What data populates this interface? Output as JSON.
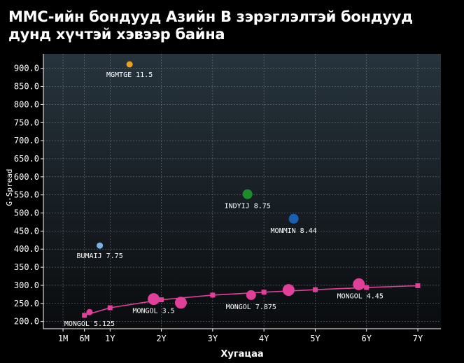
{
  "chart_data": {
    "type": "scatter",
    "title": "MMC-ийн бондууд Азийн B зэрэглэлтэй бондууд дунд хүчтэй хэвээр байна",
    "xlabel": "Хугацаа",
    "ylabel": "G-Spread",
    "ylim": [
      180,
      940
    ],
    "xlim": [
      -0.3,
      7.45
    ],
    "grid": true,
    "x_ticks": [
      {
        "value": 0.083,
        "label": "1M"
      },
      {
        "value": 0.5,
        "label": "6M"
      },
      {
        "value": 1,
        "label": "1Y"
      },
      {
        "value": 2,
        "label": "2Y"
      },
      {
        "value": 3,
        "label": "3Y"
      },
      {
        "value": 4,
        "label": "4Y"
      },
      {
        "value": 5,
        "label": "5Y"
      },
      {
        "value": 6,
        "label": "6Y"
      },
      {
        "value": 7,
        "label": "7Y"
      }
    ],
    "y_ticks": [
      200,
      250,
      300,
      350,
      400,
      450,
      500,
      550,
      600,
      650,
      700,
      750,
      800,
      850,
      900
    ],
    "curve": {
      "color": "#e0409a",
      "points": [
        {
          "x": 0.5,
          "y": 217
        },
        {
          "x": 1,
          "y": 238
        },
        {
          "x": 2,
          "y": 260
        },
        {
          "x": 3,
          "y": 273
        },
        {
          "x": 4,
          "y": 281
        },
        {
          "x": 5,
          "y": 288
        },
        {
          "x": 6,
          "y": 294
        },
        {
          "x": 7,
          "y": 299
        }
      ]
    },
    "bonds": [
      {
        "x": 0.6,
        "y": 226,
        "size": "small",
        "color": "#e0409a",
        "label": "MONGOL 5.125"
      },
      {
        "x": 1.85,
        "y": 262,
        "size": "large",
        "color": "#e0409a",
        "label": "MONGOL 3.5"
      },
      {
        "x": 2.38,
        "y": 252,
        "size": "large",
        "color": "#e0409a",
        "label": ""
      },
      {
        "x": 3.75,
        "y": 273,
        "size": "medium",
        "color": "#e0409a",
        "label": "MONGOL 7.875"
      },
      {
        "x": 4.48,
        "y": 287,
        "size": "large",
        "color": "#e0409a",
        "label": ""
      },
      {
        "x": 5.85,
        "y": 303,
        "size": "large",
        "color": "#e0409a",
        "label": "MONGOL 4.45"
      },
      {
        "x": 0.8,
        "y": 410,
        "size": "tiny",
        "color": "#7ab0e8",
        "label": "BUMAIJ 7.75"
      },
      {
        "x": 1.38,
        "y": 911,
        "size": "tiny",
        "color": "#f0a020",
        "label": "MGMTGE 11.5"
      },
      {
        "x": 3.68,
        "y": 552,
        "size": "medium",
        "color": "#1a8c2a",
        "label": "INDYIJ 8.75"
      },
      {
        "x": 4.58,
        "y": 484,
        "size": "medium",
        "color": "#1b5fb0",
        "label": "MONMIN 8.44"
      }
    ]
  }
}
